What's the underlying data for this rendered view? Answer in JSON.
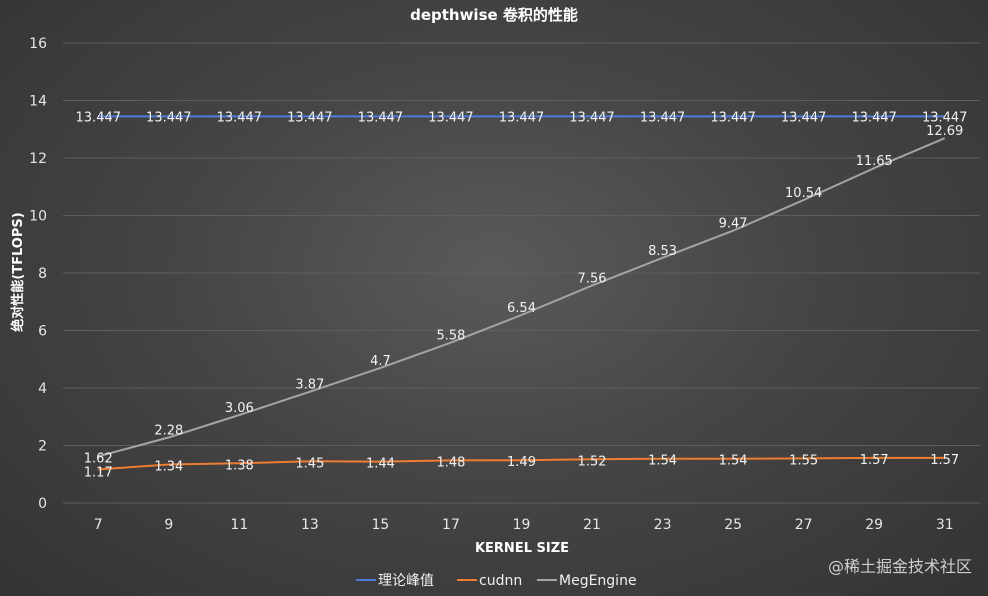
{
  "chart_data": {
    "type": "line",
    "title": "depthwise 卷积的性能",
    "xlabel": "KERNEL SIZE",
    "ylabel": "绝对性能(TFLOPS)",
    "categories": [
      "7",
      "9",
      "11",
      "13",
      "15",
      "17",
      "19",
      "21",
      "23",
      "25",
      "27",
      "29",
      "31"
    ],
    "ylim": [
      0,
      16
    ],
    "yticks": [
      0,
      2,
      4,
      6,
      8,
      10,
      12,
      14,
      16
    ],
    "grid": true,
    "legend_position": "bottom",
    "series": [
      {
        "name": "理论峰值",
        "color": "#4f7bd8",
        "values": [
          13.447,
          13.447,
          13.447,
          13.447,
          13.447,
          13.447,
          13.447,
          13.447,
          13.447,
          13.447,
          13.447,
          13.447,
          13.447
        ],
        "labels": [
          "13.447",
          "13.447",
          "13.447",
          "13.447",
          "13.447",
          "13.447",
          "13.447",
          "13.447",
          "13.447",
          "13.447",
          "13.447",
          "13.447",
          "13.447"
        ]
      },
      {
        "name": "cudnn",
        "color": "#ed7d31",
        "values": [
          1.17,
          1.34,
          1.38,
          1.45,
          1.44,
          1.48,
          1.49,
          1.52,
          1.54,
          1.54,
          1.55,
          1.57,
          1.57
        ],
        "labels": [
          "1.17",
          "1.34",
          "1.38",
          "1.45",
          "1.44",
          "1.48",
          "1.49",
          "1.52",
          "1.54",
          "1.54",
          "1.55",
          "1.57",
          "1.57"
        ]
      },
      {
        "name": "MegEngine",
        "color": "#a5a5a5",
        "values": [
          1.62,
          2.28,
          3.06,
          3.87,
          4.7,
          5.58,
          6.54,
          7.56,
          8.53,
          9.47,
          10.54,
          11.65,
          12.69
        ],
        "labels": [
          "1.62",
          "2.28",
          "3.06",
          "3.87",
          "4.7",
          "5.58",
          "6.54",
          "7.56",
          "8.53",
          "9.47",
          "10.54",
          "11.65",
          "12.69"
        ]
      }
    ]
  },
  "watermark": "@稀土掘金技术社区"
}
